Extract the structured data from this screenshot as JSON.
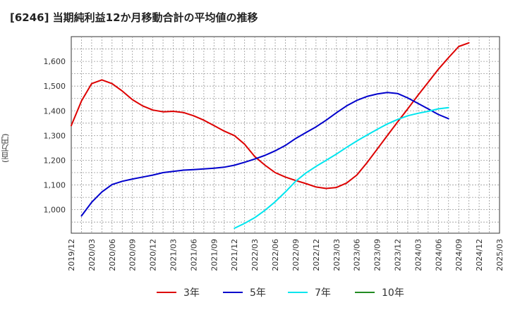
{
  "chart_data": {
    "type": "line",
    "title": "[6246]  当期純利益12か月移動合計の平均値の推移",
    "ylabel": "(百万円)",
    "ylim": [
      905,
      1700
    ],
    "yticks": [
      1000,
      1100,
      1200,
      1300,
      1400,
      1500,
      1600
    ],
    "ytick_labels": [
      "1,000",
      "1,100",
      "1,200",
      "1,300",
      "1,400",
      "1,500",
      "1,600"
    ],
    "x_categories": [
      "2019/12",
      "2020/03",
      "2020/06",
      "2020/09",
      "2020/12",
      "2021/03",
      "2021/06",
      "2021/09",
      "2021/12",
      "2022/03",
      "2022/06",
      "2022/09",
      "2022/12",
      "2023/03",
      "2023/06",
      "2023/09",
      "2023/12",
      "2024/03",
      "2024/06",
      "2024/09",
      "2024/12",
      "2025/03"
    ],
    "grid": true,
    "legend_position": "bottom",
    "series": [
      {
        "name": "3年",
        "color": "#dd0000",
        "points": [
          [
            0,
            1340
          ],
          [
            1,
            1440
          ],
          [
            2,
            1510
          ],
          [
            3,
            1525
          ],
          [
            4,
            1510
          ],
          [
            5,
            1480
          ],
          [
            6,
            1445
          ],
          [
            7,
            1420
          ],
          [
            8,
            1403
          ],
          [
            9,
            1396
          ],
          [
            10,
            1398
          ],
          [
            11,
            1393
          ],
          [
            12,
            1380
          ],
          [
            13,
            1362
          ],
          [
            14,
            1340
          ],
          [
            15,
            1318
          ],
          [
            16,
            1300
          ],
          [
            17,
            1265
          ],
          [
            18,
            1215
          ],
          [
            19,
            1180
          ],
          [
            20,
            1150
          ],
          [
            21,
            1132
          ],
          [
            22,
            1118
          ],
          [
            23,
            1106
          ],
          [
            24,
            1092
          ],
          [
            25,
            1086
          ],
          [
            26,
            1090
          ],
          [
            27,
            1108
          ],
          [
            28,
            1140
          ],
          [
            29,
            1190
          ],
          [
            30,
            1245
          ],
          [
            31,
            1300
          ],
          [
            32,
            1355
          ],
          [
            33,
            1408
          ],
          [
            34,
            1463
          ],
          [
            35,
            1515
          ],
          [
            36,
            1568
          ],
          [
            37,
            1615
          ],
          [
            38,
            1660
          ],
          [
            39,
            1675
          ]
        ]
      },
      {
        "name": "5年",
        "color": "#0000cc",
        "points": [
          [
            1,
            975
          ],
          [
            2,
            1030
          ],
          [
            3,
            1072
          ],
          [
            4,
            1102
          ],
          [
            5,
            1115
          ],
          [
            6,
            1124
          ],
          [
            7,
            1132
          ],
          [
            8,
            1140
          ],
          [
            9,
            1150
          ],
          [
            10,
            1155
          ],
          [
            11,
            1160
          ],
          [
            12,
            1162
          ],
          [
            13,
            1165
          ],
          [
            14,
            1168
          ],
          [
            15,
            1172
          ],
          [
            16,
            1180
          ],
          [
            17,
            1192
          ],
          [
            18,
            1205
          ],
          [
            19,
            1220
          ],
          [
            20,
            1238
          ],
          [
            21,
            1260
          ],
          [
            22,
            1288
          ],
          [
            23,
            1312
          ],
          [
            24,
            1335
          ],
          [
            25,
            1362
          ],
          [
            26,
            1392
          ],
          [
            27,
            1420
          ],
          [
            28,
            1442
          ],
          [
            29,
            1458
          ],
          [
            30,
            1468
          ],
          [
            31,
            1474
          ],
          [
            32,
            1470
          ],
          [
            33,
            1452
          ],
          [
            34,
            1430
          ],
          [
            35,
            1408
          ],
          [
            36,
            1385
          ],
          [
            37,
            1368
          ]
        ]
      },
      {
        "name": "7年",
        "color": "#00e5ee",
        "points": [
          [
            16,
            925
          ],
          [
            17,
            945
          ],
          [
            18,
            968
          ],
          [
            19,
            998
          ],
          [
            20,
            1032
          ],
          [
            21,
            1072
          ],
          [
            22,
            1115
          ],
          [
            23,
            1148
          ],
          [
            24,
            1175
          ],
          [
            25,
            1200
          ],
          [
            26,
            1225
          ],
          [
            27,
            1252
          ],
          [
            28,
            1278
          ],
          [
            29,
            1302
          ],
          [
            30,
            1325
          ],
          [
            31,
            1347
          ],
          [
            32,
            1365
          ],
          [
            33,
            1380
          ],
          [
            34,
            1390
          ],
          [
            35,
            1398
          ],
          [
            36,
            1408
          ],
          [
            37,
            1413
          ]
        ]
      },
      {
        "name": "10年",
        "color": "#228b22",
        "points": []
      }
    ]
  }
}
